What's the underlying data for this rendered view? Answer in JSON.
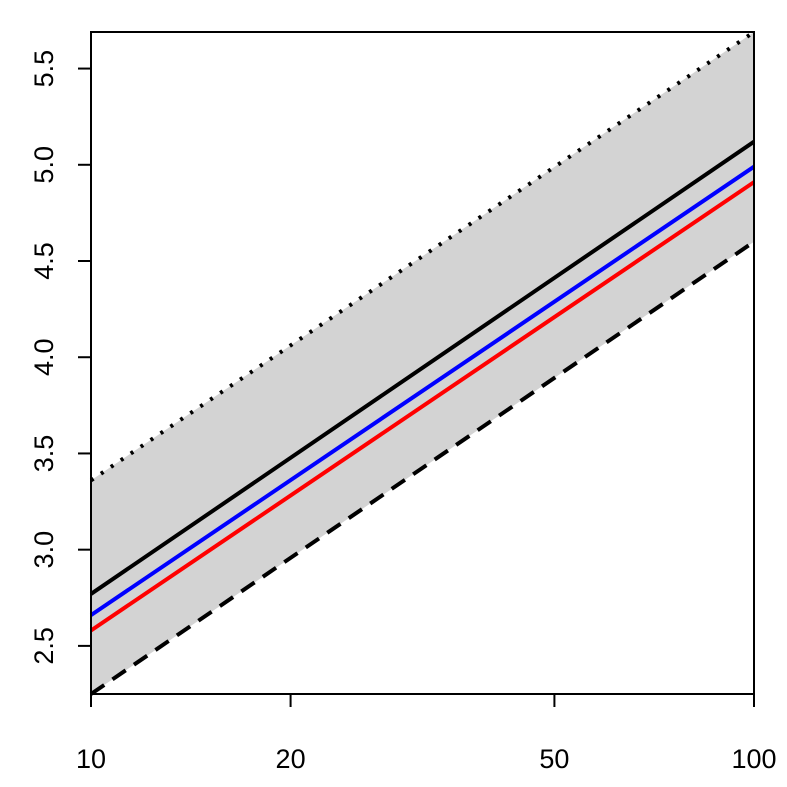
{
  "chart_data": {
    "type": "line",
    "xscale": "log",
    "xlim": [
      10,
      100
    ],
    "ylim": [
      2.25,
      5.69
    ],
    "xticks": [
      10,
      20,
      50,
      100
    ],
    "xtick_labels": [
      "10",
      "20",
      "50",
      "100"
    ],
    "yticks": [
      2.5,
      3.0,
      3.5,
      4.0,
      4.5,
      5.0,
      5.5
    ],
    "ytick_labels": [
      "2.5",
      "3.0",
      "3.5",
      "4.0",
      "4.5",
      "5.0",
      "5.5"
    ],
    "grid": false,
    "x": [
      10,
      100
    ],
    "band": {
      "lower": [
        2.25,
        4.6
      ],
      "upper": [
        3.36,
        5.69
      ],
      "color": "#d3d3d3"
    },
    "series": [
      {
        "values": [
          3.36,
          5.69
        ],
        "color": "#000000",
        "style": "dotted"
      },
      {
        "values": [
          2.77,
          5.12
        ],
        "color": "#000000",
        "style": "solid"
      },
      {
        "values": [
          2.66,
          4.99
        ],
        "color": "#0000ff",
        "style": "solid"
      },
      {
        "values": [
          2.58,
          4.91
        ],
        "color": "#ff0000",
        "style": "solid"
      },
      {
        "values": [
          2.25,
          4.6
        ],
        "color": "#000000",
        "style": "dashed"
      }
    ]
  }
}
